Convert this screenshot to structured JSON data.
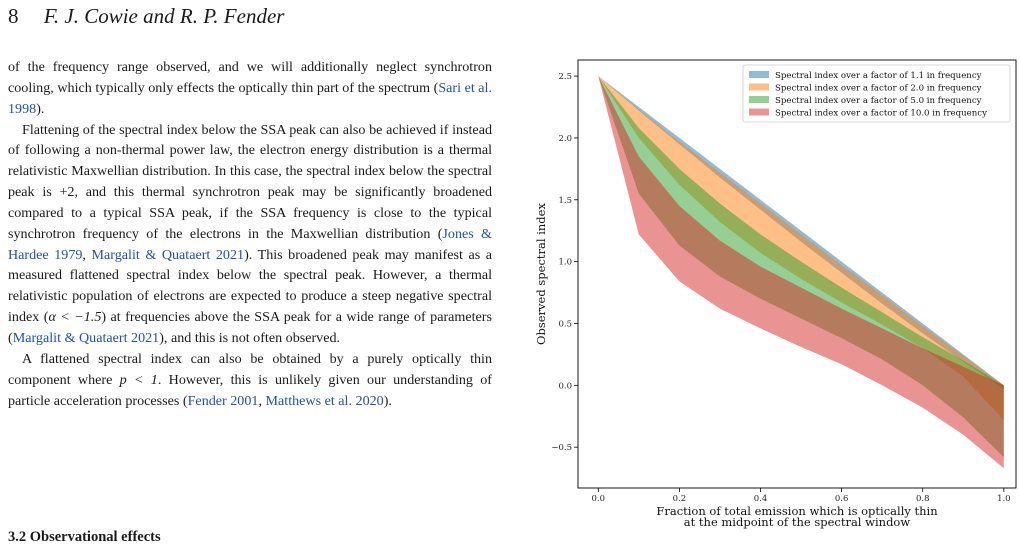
{
  "header": {
    "page_number": "8",
    "authors": "F. J. Cowie and R. P. Fender"
  },
  "paragraphs": [
    [
      {
        "t": "of the frequency range observed, and we will additionally neglect synchrotron cooling, which typically only effects the optically thin part of the spectrum ("
      },
      {
        "t": "Sari et al. 1998",
        "cite": true
      },
      {
        "t": ")."
      }
    ],
    [
      {
        "t": "Flattening of the spectral index below the SSA peak can also be achieved if instead of following a non-thermal power law, the electron energy distribution is a thermal relativistic Maxwellian distribution. In this case, the spectral index below the spectral peak is +2, and this thermal synchrotron peak may be significantly broadened compared to a typical SSA peak, if the SSA frequency is close to the typical synchrotron frequency of the electrons in the Maxwellian distribution ("
      },
      {
        "t": "Jones & Hardee 1979",
        "cite": true
      },
      {
        "t": ", "
      },
      {
        "t": "Margalit & Quataert 2021",
        "cite": true
      },
      {
        "t": "). This broadened peak may manifest as a measured flattened spectral index below the spectral peak. However, a thermal relativistic population of electrons are expected to produce a steep negative spectral index ("
      },
      {
        "t": "α < −1.5",
        "math": true
      },
      {
        "t": ") at frequencies above the SSA peak for a wide range of parameters ("
      },
      {
        "t": "Margalit & Quataert 2021",
        "cite": true
      },
      {
        "t": "), and this is not often observed."
      }
    ],
    [
      {
        "t": "A flattened spectral index can also be obtained by a purely optically thin component where "
      },
      {
        "t": "p < 1",
        "math": true
      },
      {
        "t": ". However, this is unlikely given our understanding of particle acceleration processes ("
      },
      {
        "t": "Fender 2001",
        "cite": true
      },
      {
        "t": ", "
      },
      {
        "t": "Matthews et al. 2020",
        "cite": true
      },
      {
        "t": ")."
      }
    ]
  ],
  "section_heading": "3.2 Observational effects",
  "chart_data": {
    "type": "area",
    "xlabel": [
      "Fraction of total emission which is optically thin",
      "at the midpoint of the spectral window"
    ],
    "ylabel": "Observed spectral index",
    "xlim": [
      -0.05,
      1.03
    ],
    "ylim": [
      -0.83,
      2.63
    ],
    "xticks": [
      0.0,
      0.2,
      0.4,
      0.6,
      0.8,
      1.0
    ],
    "yticks": [
      -0.5,
      0.0,
      0.5,
      1.0,
      1.5,
      2.0,
      2.5
    ],
    "xtick_labels": [
      "0.0",
      "0.2",
      "0.4",
      "0.6",
      "0.8",
      "1.0"
    ],
    "ytick_labels": [
      "−0.5",
      "0.0",
      "0.5",
      "1.0",
      "1.5",
      "2.0",
      "2.5"
    ],
    "legend_position": "upper right",
    "grid": false,
    "x": [
      0.0,
      0.1,
      0.2,
      0.3,
      0.4,
      0.5,
      0.6,
      0.7,
      0.8,
      0.9,
      1.0
    ],
    "series": [
      {
        "name": "Spectral index over a factor of 1.1 in frequency",
        "color": "#1f77b4",
        "upper": [
          2.5,
          2.25,
          2.0,
          1.75,
          1.5,
          1.25,
          1.0,
          0.75,
          0.5,
          0.25,
          0.0
        ],
        "lower": [
          2.5,
          2.22,
          1.95,
          1.68,
          1.42,
          1.16,
          0.91,
          0.66,
          0.42,
          0.19,
          -0.03
        ]
      },
      {
        "name": "Spectral index over a factor of 2.0 in frequency",
        "color": "#ff7f0e",
        "upper": [
          2.5,
          2.23,
          1.97,
          1.72,
          1.47,
          1.22,
          0.97,
          0.73,
          0.48,
          0.24,
          0.0
        ],
        "lower": [
          2.5,
          2.0,
          1.62,
          1.32,
          1.07,
          0.86,
          0.67,
          0.49,
          0.3,
          0.07,
          -0.28
        ]
      },
      {
        "name": "Spectral index over a factor of 5.0 in frequency",
        "color": "#2ca02c",
        "upper": [
          2.5,
          2.08,
          1.75,
          1.47,
          1.22,
          1.0,
          0.79,
          0.59,
          0.39,
          0.2,
          0.0
        ],
        "lower": [
          2.5,
          1.55,
          1.13,
          0.88,
          0.7,
          0.54,
          0.38,
          0.21,
          0.0,
          -0.26,
          -0.58
        ]
      },
      {
        "name": "Spectral index over a factor of 10.0 in frequency",
        "color": "#d62728",
        "upper": [
          2.5,
          1.85,
          1.45,
          1.17,
          0.96,
          0.79,
          0.62,
          0.46,
          0.3,
          0.15,
          0.0
        ],
        "lower": [
          2.5,
          1.22,
          0.84,
          0.62,
          0.46,
          0.31,
          0.17,
          0.0,
          -0.18,
          -0.4,
          -0.67
        ]
      }
    ]
  }
}
